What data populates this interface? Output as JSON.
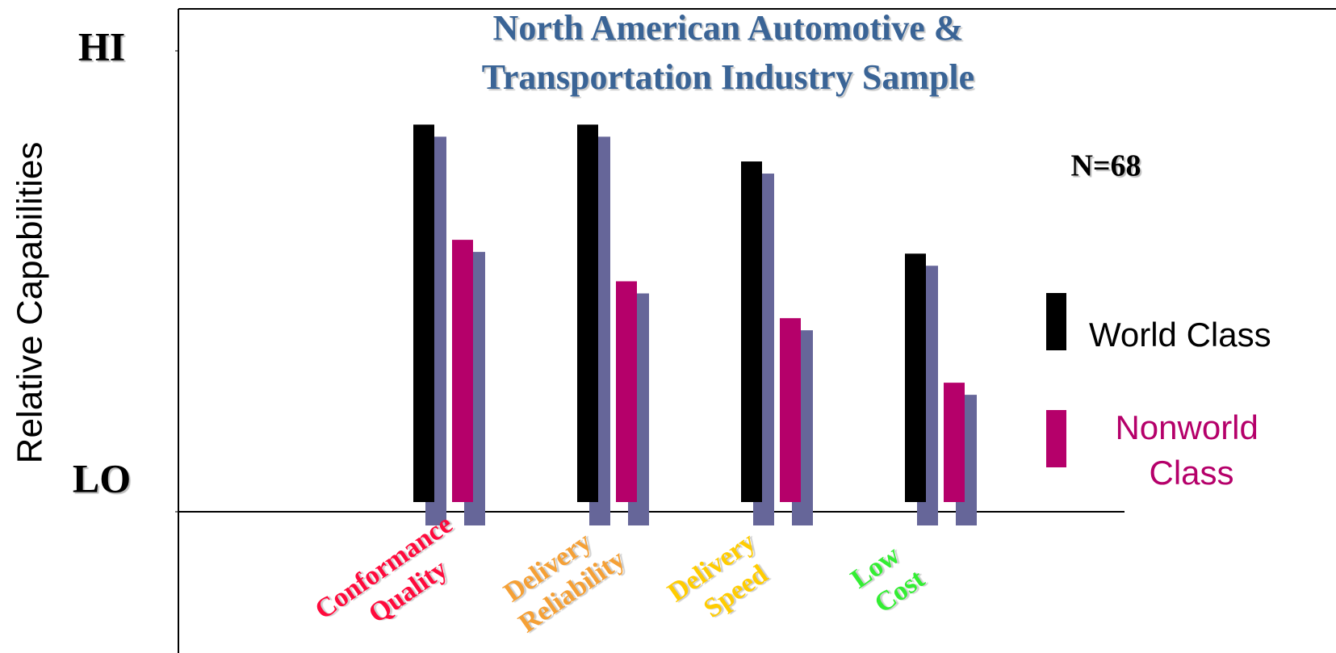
{
  "chart_data": {
    "type": "bar",
    "title": [
      "North American Automotive &",
      "Transportation Industry Sample"
    ],
    "y_label": "Relative Capabilities",
    "annotation": "N=68",
    "categories": [
      [
        "Conformance",
        "Quality"
      ],
      [
        "Delivery",
        "Reliability"
      ],
      [
        "Delivery",
        "Speed"
      ],
      [
        "Low",
        "Cost"
      ]
    ],
    "category_colors": [
      "#ff0a3c",
      "#f5a035",
      "#ffcc00",
      "#33ee33"
    ],
    "series": [
      {
        "name": "World Class",
        "color": "#000000",
        "values": [
          84,
          84,
          76,
          56
        ]
      },
      {
        "name": "Nonworld Class",
        "color": "#b5006a",
        "values": [
          59,
          50,
          42,
          28
        ]
      }
    ],
    "shadow_color": "#666699",
    "ylim": [
      0,
      100
    ],
    "yticks": [
      {
        "value": 0,
        "label": "LO"
      },
      {
        "value": 100,
        "label": "HI"
      }
    ]
  }
}
